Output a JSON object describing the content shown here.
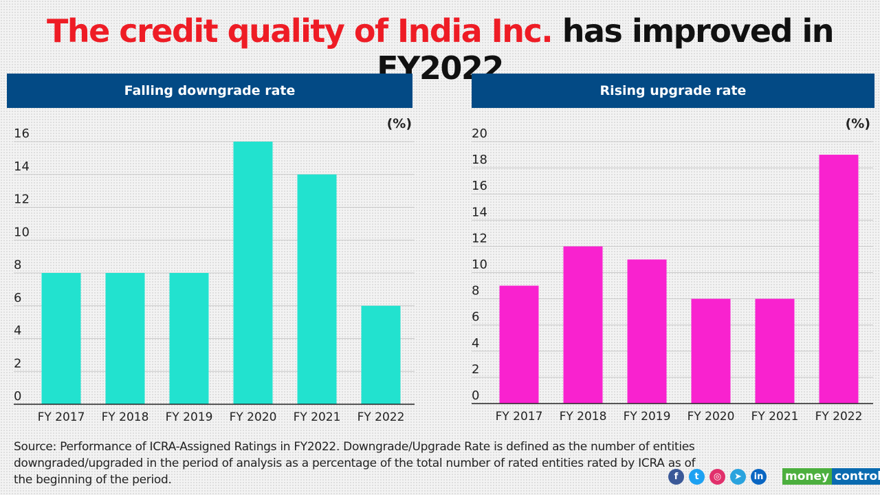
{
  "title": {
    "part1": "The credit quality of India Inc.",
    "part2": "has improved in FY2022"
  },
  "chart_data": [
    {
      "type": "bar",
      "title": "Falling downgrade rate",
      "unit": "(%)",
      "categories": [
        "FY 2017",
        "FY 2018",
        "FY 2019",
        "FY 2020",
        "FY 2021",
        "FY 2022"
      ],
      "values": [
        8,
        8,
        8,
        16,
        14,
        6
      ],
      "ylim": [
        0,
        16
      ],
      "yticks": [
        0,
        2,
        4,
        6,
        8,
        10,
        12,
        14,
        16
      ],
      "color": "#22e2cf",
      "grid": true
    },
    {
      "type": "bar",
      "title": "Rising upgrade rate",
      "unit": "(%)",
      "categories": [
        "FY 2017",
        "FY 2018",
        "FY 2019",
        "FY 2020",
        "FY 2021",
        "FY 2022"
      ],
      "values": [
        9,
        12,
        11,
        8,
        8,
        19
      ],
      "ylim": [
        0,
        20
      ],
      "yticks": [
        0,
        2,
        4,
        6,
        8,
        10,
        12,
        14,
        16,
        18,
        20
      ],
      "color": "#f922cf",
      "grid": true
    }
  ],
  "source": "Source: Performance of ICRA-Assigned Ratings in FY2022. Downgrade/Upgrade Rate is defined as the number of entities downgraded/upgraded in the period of analysis as a percentage of the total number of rated entities rated by ICRA as of the beginning of the period.",
  "social": [
    {
      "icon": "facebook-icon",
      "glyph": "f",
      "color": "#3b5998"
    },
    {
      "icon": "twitter-icon",
      "glyph": "t",
      "color": "#1da1f2"
    },
    {
      "icon": "instagram-icon",
      "glyph": "◎",
      "color": "#e1306c"
    },
    {
      "icon": "telegram-icon",
      "glyph": "➤",
      "color": "#2aa3de"
    },
    {
      "icon": "linkedin-icon",
      "glyph": "in",
      "color": "#0a66c2"
    }
  ],
  "logo": {
    "part1": "money",
    "part2": "control"
  }
}
